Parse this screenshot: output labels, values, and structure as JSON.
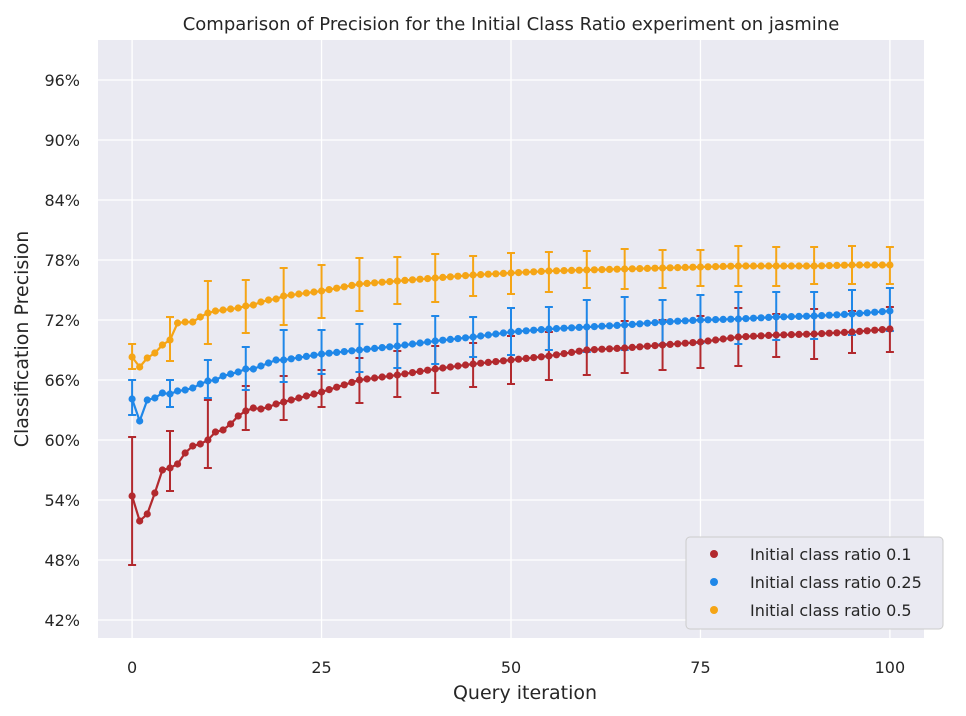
{
  "chart_data": {
    "type": "line",
    "title": "Comparison of Precision for the Initial Class Ratio experiment on jasmine",
    "xlabel": "Query iteration",
    "ylabel": "Classification Precision",
    "xlim": [
      -4.5,
      104.5
    ],
    "ylim": [
      40.2,
      100.0
    ],
    "xticks": [
      0,
      25,
      50,
      75,
      100
    ],
    "xtick_labels": [
      "0",
      "25",
      "50",
      "75",
      "100"
    ],
    "yticks": [
      42,
      48,
      54,
      60,
      66,
      72,
      78,
      84,
      90,
      96
    ],
    "ytick_labels": [
      "42%",
      "48%",
      "54%",
      "60%",
      "66%",
      "72%",
      "78%",
      "84%",
      "90%",
      "96%"
    ],
    "grid": true,
    "legend_position": "bottom-right",
    "series": [
      {
        "name": "Initial class ratio 0.1",
        "color": "#b2292e",
        "anchors": [
          [
            0,
            54.4
          ],
          [
            1,
            51.9
          ],
          [
            2,
            52.6
          ],
          [
            3,
            54.7
          ],
          [
            4,
            57.0
          ],
          [
            5,
            57.2
          ],
          [
            6,
            57.6
          ],
          [
            7,
            58.7
          ],
          [
            8,
            59.4
          ],
          [
            9,
            59.6
          ],
          [
            10,
            60.0
          ],
          [
            11,
            60.8
          ],
          [
            12,
            61.0
          ],
          [
            13,
            61.6
          ],
          [
            14,
            62.4
          ],
          [
            15,
            62.9
          ],
          [
            16,
            63.2
          ],
          [
            17,
            63.1
          ],
          [
            18,
            63.3
          ],
          [
            19,
            63.6
          ],
          [
            20,
            63.8
          ],
          [
            25,
            64.8
          ],
          [
            30,
            66.0
          ],
          [
            35,
            66.5
          ],
          [
            40,
            67.1
          ],
          [
            45,
            67.6
          ],
          [
            50,
            68.0
          ],
          [
            55,
            68.4
          ],
          [
            60,
            69.0
          ],
          [
            65,
            69.2
          ],
          [
            70,
            69.5
          ],
          [
            75,
            69.8
          ],
          [
            80,
            70.3
          ],
          [
            85,
            70.5
          ],
          [
            90,
            70.6
          ],
          [
            95,
            70.8
          ],
          [
            100,
            71.1
          ]
        ],
        "error_bars": [
          [
            0,
            47.5,
            60.3
          ],
          [
            5,
            54.9,
            60.9
          ],
          [
            10,
            57.2,
            64.0
          ],
          [
            15,
            61.0,
            65.4
          ],
          [
            20,
            62.0,
            66.4
          ],
          [
            25,
            63.3,
            67.0
          ],
          [
            30,
            63.7,
            68.2
          ],
          [
            35,
            64.3,
            68.9
          ],
          [
            40,
            64.7,
            69.4
          ],
          [
            45,
            65.3,
            69.7
          ],
          [
            50,
            65.6,
            70.4
          ],
          [
            55,
            66.0,
            70.8
          ],
          [
            60,
            66.5,
            71.3
          ],
          [
            65,
            66.7,
            71.9
          ],
          [
            70,
            67.0,
            72.0
          ],
          [
            75,
            67.2,
            72.4
          ],
          [
            80,
            67.4,
            73.2
          ],
          [
            85,
            68.3,
            72.6
          ],
          [
            90,
            68.1,
            73.1
          ],
          [
            95,
            68.7,
            72.9
          ],
          [
            100,
            68.8,
            73.3
          ]
        ]
      },
      {
        "name": "Initial class ratio 0.25",
        "color": "#1f87e8",
        "anchors": [
          [
            0,
            64.1
          ],
          [
            1,
            61.9
          ],
          [
            2,
            64.0
          ],
          [
            3,
            64.2
          ],
          [
            4,
            64.7
          ],
          [
            5,
            64.6
          ],
          [
            6,
            64.9
          ],
          [
            7,
            65.0
          ],
          [
            8,
            65.2
          ],
          [
            9,
            65.6
          ],
          [
            10,
            65.9
          ],
          [
            11,
            66.0
          ],
          [
            12,
            66.4
          ],
          [
            13,
            66.6
          ],
          [
            14,
            66.8
          ],
          [
            15,
            67.1
          ],
          [
            16,
            67.1
          ],
          [
            17,
            67.4
          ],
          [
            18,
            67.7
          ],
          [
            19,
            68.0
          ],
          [
            20,
            68.0
          ],
          [
            25,
            68.6
          ],
          [
            30,
            69.0
          ],
          [
            35,
            69.4
          ],
          [
            40,
            69.9
          ],
          [
            45,
            70.3
          ],
          [
            50,
            70.8
          ],
          [
            55,
            71.1
          ],
          [
            60,
            71.3
          ],
          [
            65,
            71.5
          ],
          [
            70,
            71.8
          ],
          [
            75,
            72.0
          ],
          [
            80,
            72.1
          ],
          [
            85,
            72.3
          ],
          [
            90,
            72.4
          ],
          [
            95,
            72.6
          ],
          [
            100,
            72.9
          ]
        ],
        "error_bars": [
          [
            0,
            62.5,
            66.0
          ],
          [
            5,
            63.3,
            66.0
          ],
          [
            10,
            64.2,
            68.0
          ],
          [
            15,
            65.0,
            69.3
          ],
          [
            20,
            65.8,
            71.0
          ],
          [
            25,
            66.6,
            71.0
          ],
          [
            30,
            66.8,
            71.6
          ],
          [
            35,
            67.2,
            71.6
          ],
          [
            40,
            67.6,
            72.4
          ],
          [
            45,
            68.3,
            72.3
          ],
          [
            50,
            68.5,
            73.2
          ],
          [
            55,
            69.0,
            73.3
          ],
          [
            60,
            68.8,
            74.0
          ],
          [
            65,
            69.0,
            74.3
          ],
          [
            70,
            69.6,
            74.0
          ],
          [
            75,
            69.7,
            74.5
          ],
          [
            80,
            69.6,
            74.8
          ],
          [
            85,
            70.0,
            74.8
          ],
          [
            90,
            70.1,
            74.8
          ],
          [
            95,
            70.5,
            75.0
          ],
          [
            100,
            70.9,
            75.2
          ]
        ]
      },
      {
        "name": "Initial class ratio 0.5",
        "color": "#f5a516",
        "anchors": [
          [
            0,
            68.3
          ],
          [
            1,
            67.3
          ],
          [
            2,
            68.2
          ],
          [
            3,
            68.7
          ],
          [
            4,
            69.5
          ],
          [
            5,
            70.0
          ],
          [
            6,
            71.7
          ],
          [
            7,
            71.8
          ],
          [
            8,
            71.8
          ],
          [
            9,
            72.3
          ],
          [
            10,
            72.7
          ],
          [
            11,
            72.9
          ],
          [
            12,
            73.0
          ],
          [
            13,
            73.1
          ],
          [
            14,
            73.2
          ],
          [
            15,
            73.4
          ],
          [
            16,
            73.5
          ],
          [
            17,
            73.8
          ],
          [
            18,
            74.0
          ],
          [
            19,
            74.1
          ],
          [
            20,
            74.4
          ],
          [
            25,
            74.9
          ],
          [
            30,
            75.6
          ],
          [
            35,
            75.9
          ],
          [
            40,
            76.2
          ],
          [
            45,
            76.5
          ],
          [
            50,
            76.7
          ],
          [
            55,
            76.9
          ],
          [
            60,
            77.0
          ],
          [
            65,
            77.1
          ],
          [
            70,
            77.2
          ],
          [
            75,
            77.3
          ],
          [
            80,
            77.4
          ],
          [
            85,
            77.4
          ],
          [
            90,
            77.4
          ],
          [
            95,
            77.5
          ],
          [
            100,
            77.5
          ]
        ],
        "error_bars": [
          [
            0,
            67.1,
            69.6
          ],
          [
            5,
            67.9,
            72.3
          ],
          [
            10,
            69.6,
            75.9
          ],
          [
            15,
            70.7,
            76.0
          ],
          [
            20,
            71.5,
            77.2
          ],
          [
            25,
            72.2,
            77.5
          ],
          [
            30,
            72.9,
            78.2
          ],
          [
            35,
            73.6,
            78.3
          ],
          [
            40,
            73.8,
            78.6
          ],
          [
            45,
            74.4,
            78.4
          ],
          [
            50,
            74.6,
            78.7
          ],
          [
            55,
            74.8,
            78.8
          ],
          [
            60,
            75.2,
            78.9
          ],
          [
            65,
            75.1,
            79.1
          ],
          [
            70,
            75.2,
            79.0
          ],
          [
            75,
            75.4,
            79.0
          ],
          [
            80,
            75.4,
            79.4
          ],
          [
            85,
            75.4,
            79.3
          ],
          [
            90,
            75.6,
            79.3
          ],
          [
            95,
            75.6,
            79.4
          ],
          [
            100,
            75.6,
            79.3
          ]
        ]
      }
    ]
  }
}
